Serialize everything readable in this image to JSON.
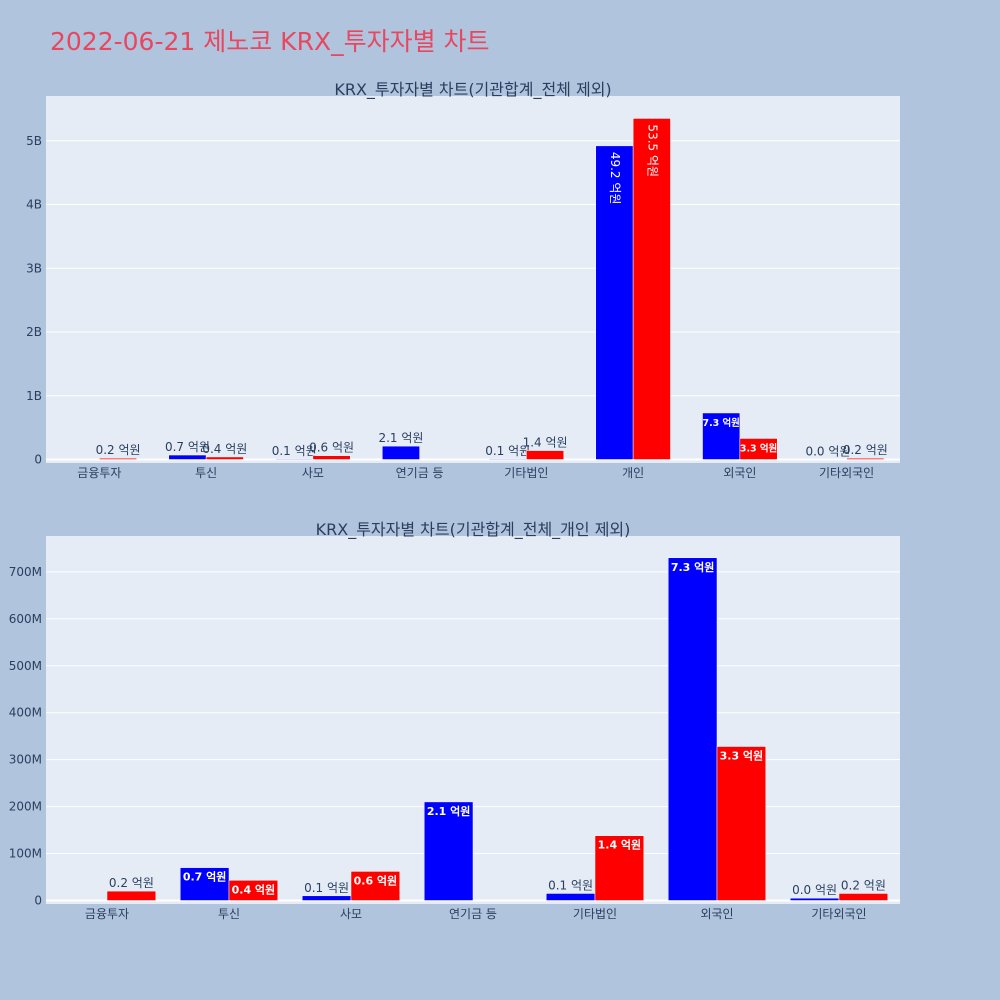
{
  "page_title": "2022-06-21 제노코 KRX_투자자별 차트",
  "colors": {
    "background": "#b0c4de",
    "plot_background": "#e5ecf6",
    "title": "#e8475f",
    "sell": "#0000ff",
    "buy": "#ff0000",
    "text": "#2a3f5f"
  },
  "chart_data": [
    {
      "type": "bar",
      "title": "KRX_투자자별 차트(기관합계_전체 제외)",
      "categories": [
        "금융투자",
        "투신",
        "사모",
        "연기금 등",
        "기타법인",
        "개인",
        "외국인",
        "기타외국인"
      ],
      "ylim": [
        0,
        5.5
      ],
      "y_unit_note": "billions (tick suffix B)",
      "yticks": [
        "0",
        "1B",
        "2B",
        "3B",
        "4B",
        "5B"
      ],
      "grid": true,
      "series": [
        {
          "color": "#0000ff",
          "values": [
            0,
            0.07,
            0.01,
            0.21,
            0.01,
            4.92,
            0.73,
            0.0
          ],
          "labels": [
            "",
            "0.7 억원",
            "0.1 억원",
            "2.1 억원",
            "0.1 억원",
            "49.2 억원",
            "7.3 억원",
            "0.0 억원"
          ]
        },
        {
          "color": "#ff0000",
          "values": [
            0.02,
            0.04,
            0.06,
            0,
            0.14,
            5.35,
            0.33,
            0.02
          ],
          "labels": [
            "0.2 억원",
            "0.4 억원",
            "0.6 억원",
            "",
            "1.4 억원",
            "53.5 억원",
            "3.3 억원",
            "0.2 억원"
          ]
        }
      ]
    },
    {
      "type": "bar",
      "title": "KRX_투자자별 차트(기관합계_전체_개인 제외)",
      "categories": [
        "금융투자",
        "투신",
        "사모",
        "연기금 등",
        "기타법인",
        "외국인",
        "기타외국인"
      ],
      "ylim": [
        0,
        780
      ],
      "y_unit_note": "millions (tick suffix M)",
      "yticks": [
        "0",
        "100M",
        "200M",
        "300M",
        "400M",
        "500M",
        "600M",
        "700M"
      ],
      "grid": true,
      "series": [
        {
          "color": "#0000ff",
          "values": [
            0,
            70,
            10,
            210,
            15,
            730,
            5
          ],
          "labels": [
            "",
            "0.7 억원",
            "0.1 억원",
            "2.1 억원",
            "0.1 억원",
            "7.3 억원",
            "0.0 억원"
          ]
        },
        {
          "color": "#ff0000",
          "values": [
            20,
            43,
            62,
            0,
            138,
            328,
            15
          ],
          "labels": [
            "0.2 억원",
            "0.4 억원",
            "0.6 억원",
            "",
            "1.4 억원",
            "3.3 억원",
            "0.2 억원"
          ]
        }
      ]
    }
  ]
}
